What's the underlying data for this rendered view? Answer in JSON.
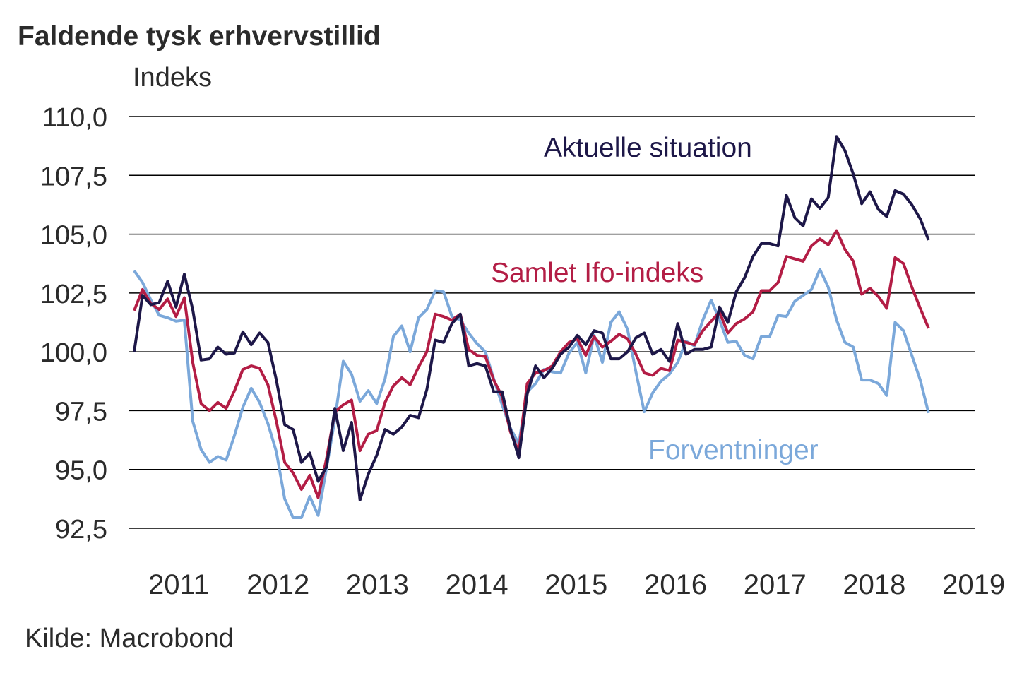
{
  "chart_data": {
    "type": "line",
    "title": "Faldende tysk erhvervstillid",
    "ylabel": "Indeks",
    "xlabel": "",
    "source": "Kilde: Macrobond",
    "ylim": [
      92.5,
      110.0
    ],
    "yticks": [
      {
        "value": 110.0,
        "label": "110,0"
      },
      {
        "value": 107.5,
        "label": "107,5"
      },
      {
        "value": 105.0,
        "label": "105,0"
      },
      {
        "value": 102.5,
        "label": "102,5"
      },
      {
        "value": 100.0,
        "label": "100,0"
      },
      {
        "value": 97.5,
        "label": "97,5"
      },
      {
        "value": 95.0,
        "label": "95,0"
      },
      {
        "value": 92.5,
        "label": "92,5"
      }
    ],
    "xticks": [
      "2011",
      "2012",
      "2013",
      "2014",
      "2015",
      "2016",
      "2017",
      "2018",
      "2019"
    ],
    "grid": true,
    "x_start": "2011-01",
    "x_frequency": "monthly",
    "series": [
      {
        "name": "Aktuelle situation",
        "color": "#1d1748",
        "values": [
          100.0,
          102.4,
          102.0,
          102.1,
          103.0,
          101.9,
          103.3,
          101.8,
          99.65,
          99.7,
          100.2,
          99.9,
          99.95,
          100.85,
          100.3,
          100.8,
          100.4,
          98.8,
          96.9,
          96.7,
          95.3,
          95.7,
          94.5,
          95.1,
          97.6,
          95.8,
          97.0,
          93.7,
          94.8,
          95.6,
          96.7,
          96.5,
          96.8,
          97.3,
          97.2,
          98.4,
          100.5,
          100.4,
          101.2,
          101.6,
          99.4,
          99.5,
          99.4,
          98.3,
          98.3,
          96.7,
          95.5,
          98.2,
          99.4,
          98.9,
          99.3,
          99.9,
          100.2,
          100.7,
          100.3,
          100.9,
          100.8,
          99.7,
          99.7,
          100.0,
          100.6,
          100.8,
          99.9,
          100.1,
          99.6,
          101.2,
          99.9,
          100.1,
          100.1,
          100.2,
          101.9,
          101.25,
          102.55,
          103.15,
          104.05,
          104.6,
          104.6,
          104.5,
          106.65,
          105.7,
          105.35,
          106.5,
          106.1,
          106.55,
          109.15,
          108.55,
          107.55,
          106.3,
          106.8,
          106.05,
          105.75,
          106.85,
          106.7,
          106.25,
          105.65,
          104.75
        ]
      },
      {
        "name": "Samlet Ifo-indeks",
        "color": "#b31d45",
        "values": [
          101.75,
          102.65,
          102.05,
          101.8,
          102.25,
          101.5,
          102.3,
          99.55,
          97.8,
          97.5,
          97.85,
          97.6,
          98.35,
          99.25,
          99.4,
          99.3,
          98.6,
          97.05,
          95.3,
          94.85,
          94.15,
          94.75,
          93.8,
          95.45,
          97.45,
          97.75,
          97.95,
          95.8,
          96.5,
          96.65,
          97.85,
          98.55,
          98.9,
          98.6,
          99.35,
          100.0,
          101.6,
          101.5,
          101.35,
          101.6,
          100.1,
          99.85,
          99.8,
          98.8,
          98.1,
          96.6,
          95.75,
          98.65,
          99.1,
          99.2,
          99.4,
          100.0,
          100.4,
          100.55,
          99.85,
          100.65,
          100.2,
          100.45,
          100.75,
          100.55,
          99.9,
          99.1,
          99.0,
          99.3,
          99.2,
          100.5,
          100.4,
          100.3,
          100.9,
          101.3,
          101.7,
          100.8,
          101.2,
          101.4,
          101.7,
          102.6,
          102.6,
          102.95,
          104.05,
          103.95,
          103.85,
          104.5,
          104.8,
          104.55,
          105.15,
          104.35,
          103.85,
          102.45,
          102.7,
          102.35,
          101.85,
          104.0,
          103.75,
          102.75,
          101.85,
          101.0
        ]
      },
      {
        "name": "Forventninger",
        "color": "#7ba8da",
        "values": [
          103.45,
          102.95,
          102.2,
          101.55,
          101.45,
          101.3,
          101.35,
          97.05,
          95.85,
          95.3,
          95.55,
          95.4,
          96.45,
          97.65,
          98.45,
          97.85,
          96.95,
          95.75,
          93.75,
          92.95,
          92.95,
          93.85,
          93.05,
          95.05,
          97.15,
          99.6,
          99.05,
          97.9,
          98.35,
          97.8,
          98.85,
          100.65,
          101.1,
          100.0,
          101.45,
          101.8,
          102.6,
          102.55,
          101.5,
          101.35,
          100.8,
          100.35,
          100.0,
          98.85,
          97.75,
          96.75,
          96.1,
          98.3,
          98.65,
          99.25,
          99.15,
          99.1,
          99.95,
          100.4,
          99.1,
          100.7,
          99.55,
          101.25,
          101.7,
          100.95,
          99.15,
          97.45,
          98.25,
          98.75,
          99.05,
          99.55,
          100.45,
          100.25,
          101.35,
          102.2,
          101.35,
          100.4,
          100.45,
          99.85,
          99.7,
          100.65,
          100.65,
          101.55,
          101.5,
          102.15,
          102.4,
          102.65,
          103.5,
          102.75,
          101.35,
          100.4,
          100.2,
          98.8,
          98.8,
          98.65,
          98.15,
          101.25,
          100.9,
          99.85,
          98.8,
          97.4
        ]
      }
    ]
  }
}
